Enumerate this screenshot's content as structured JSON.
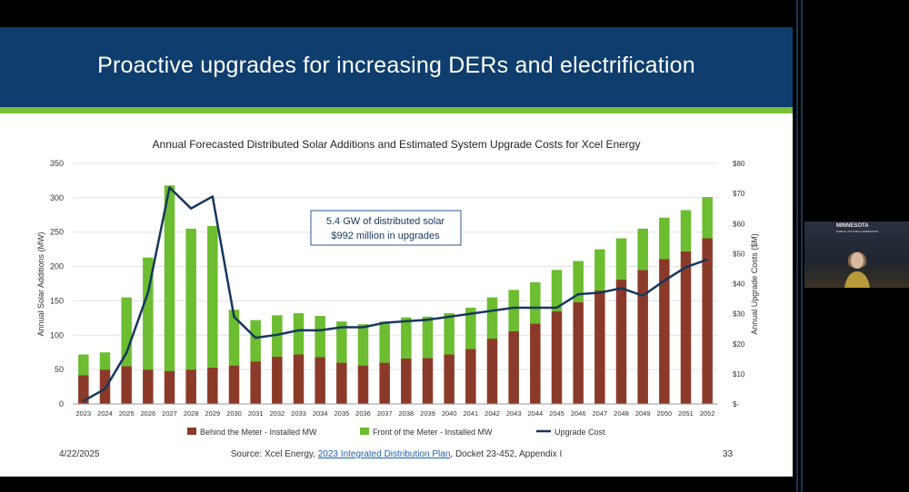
{
  "slide": {
    "title": "Proactive upgrades for increasing DERs and electrification",
    "date": "4/22/2025",
    "source_prefix": "Source: Xcel Energy, ",
    "source_link": "2023 Integrated Distribution Plan",
    "source_suffix": ", Docket 23-452, Appendix I",
    "page_number": "33"
  },
  "video": {
    "logo_line1": "MINNESOTA",
    "logo_line2": "PUBLIC UTILITIES COMMISSION"
  },
  "colors": {
    "title_bar": "#0e3d6e",
    "accent": "#7bbf3a",
    "behind_meter": "#8b3a2a",
    "front_meter": "#6cbd2f",
    "upgrade_cost": "#17365d"
  },
  "chart_data": {
    "type": "bar",
    "stacked": true,
    "title": "Annual Forecasted Distributed Solar Additions and Estimated System Upgrade Costs for Xcel Energy",
    "categories": [
      "2023",
      "2024",
      "2025",
      "2026",
      "2027",
      "2028",
      "2029",
      "2030",
      "2031",
      "2032",
      "2033",
      "2034",
      "2035",
      "2036",
      "2037",
      "2038",
      "2039",
      "2040",
      "2041",
      "2042",
      "2043",
      "2044",
      "2045",
      "2046",
      "2047",
      "2048",
      "2049",
      "2050",
      "2051",
      "2052"
    ],
    "series": [
      {
        "name": "Behind the Meter - Installed MW",
        "kind": "bar",
        "axis": "left",
        "values": [
          42,
          50,
          55,
          50,
          48,
          50,
          53,
          56,
          62,
          69,
          72,
          68,
          60,
          56,
          60,
          66,
          67,
          72,
          80,
          95,
          106,
          117,
          135,
          148,
          165,
          181,
          195,
          211,
          222,
          241
        ]
      },
      {
        "name": "Front of the Meter - Installed MW",
        "kind": "bar",
        "axis": "left",
        "values": [
          30,
          25,
          100,
          163,
          270,
          205,
          206,
          81,
          60,
          60,
          60,
          60,
          60,
          60,
          60,
          60,
          60,
          60,
          60,
          60,
          60,
          60,
          60,
          60,
          60,
          60,
          60,
          60,
          60,
          60
        ]
      },
      {
        "name": "Upgrade Cost",
        "kind": "line",
        "axis": "right",
        "values": [
          1,
          5,
          17,
          37,
          72,
          65,
          69,
          29,
          22,
          23,
          24.5,
          24.5,
          25.5,
          25.5,
          27,
          27.5,
          28,
          29,
          30,
          31,
          32,
          32,
          32,
          36.5,
          37,
          38.5,
          36,
          41,
          45.5,
          48
        ]
      }
    ],
    "ylabel": "Annual Solar Additions (MW)",
    "ylim": [
      0,
      350
    ],
    "yticks": [
      "0",
      "50",
      "100",
      "150",
      "200",
      "250",
      "300",
      "350"
    ],
    "y2label": "Annual Upgrade Costs ($M)",
    "y2lim": [
      0,
      80
    ],
    "y2ticks": [
      "$-",
      "$10",
      "$20",
      "$30",
      "$40",
      "$50",
      "$60",
      "$70",
      "$80"
    ],
    "annotation_line1": "5.4 GW of distributed solar",
    "annotation_line2": "$992 million in upgrades",
    "legend_position": "bottom"
  }
}
